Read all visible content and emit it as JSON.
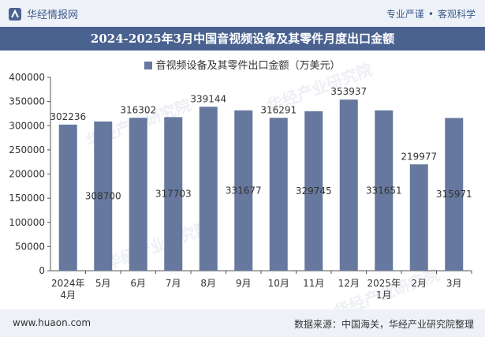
{
  "header": {
    "brand_name": "华经情报网",
    "tagline_left": "专业严谨",
    "tagline_right": "客观科学"
  },
  "chart_title": "2024-2025年3月中国音视频设备及其零件月度出口金额",
  "chart_data": {
    "type": "bar",
    "title": "2024-2025年3月中国音视频设备及其零件月度出口金额",
    "legend": "音视频设备及其零件出口金额（万美元）",
    "categories": [
      [
        "2024年",
        "4月"
      ],
      [
        "5月"
      ],
      [
        "6月"
      ],
      [
        "7月"
      ],
      [
        "8月"
      ],
      [
        "9月"
      ],
      [
        "10月"
      ],
      [
        "11月"
      ],
      [
        "12月"
      ],
      [
        "2025年",
        "1月"
      ],
      [
        "2月"
      ],
      [
        "3月"
      ]
    ],
    "values": [
      302236,
      308700,
      316302,
      317703,
      339144,
      331677,
      316291,
      329745,
      353937,
      331651,
      219977,
      315971
    ],
    "label_position": [
      "top",
      "middle",
      "top",
      "middle",
      "top",
      "middle",
      "top",
      "middle",
      "top",
      "middle",
      "top",
      "middle"
    ],
    "ylim": [
      0,
      400000
    ],
    "yticks": [
      0,
      50000,
      100000,
      150000,
      200000,
      250000,
      300000,
      350000,
      400000
    ],
    "grid": false,
    "bar_color": "#66789e"
  },
  "footer": {
    "url": "www.huaon.com",
    "source": "数据来源：中国海关，华经产业研究院整理"
  },
  "watermark": "华经产业研究院"
}
